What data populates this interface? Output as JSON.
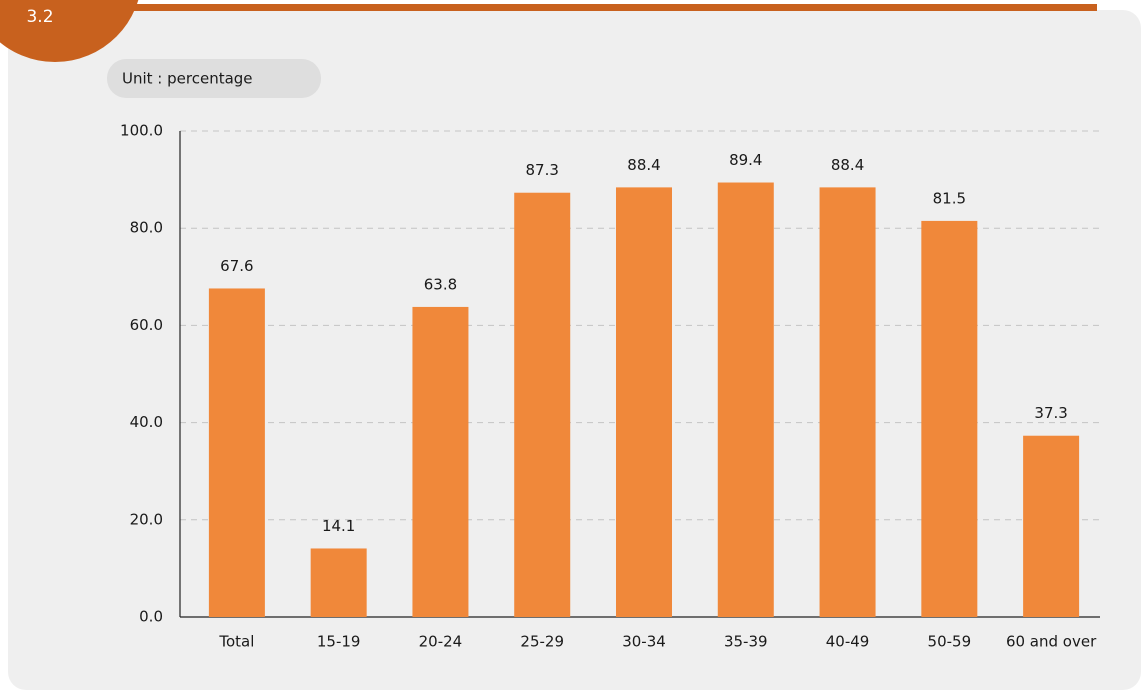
{
  "chart_data": {
    "type": "bar",
    "figure_number": "3.2",
    "unit_label": "Unit : percentage",
    "categories": [
      "Total",
      "15-19",
      "20-24",
      "25-29",
      "30-34",
      "35-39",
      "40-49",
      "50-59",
      "60 and over"
    ],
    "values": [
      67.6,
      14.1,
      63.8,
      87.3,
      88.4,
      89.4,
      88.4,
      81.5,
      37.3
    ],
    "color": "#f0883a",
    "ylim": [
      0,
      100
    ],
    "yticks": [
      {
        "value": 0,
        "label": "0.0"
      },
      {
        "value": 20,
        "label": "20.0"
      },
      {
        "value": 40,
        "label": "40.0"
      },
      {
        "value": 60,
        "label": "60.0"
      },
      {
        "value": 80,
        "label": "80.0"
      },
      {
        "value": 100,
        "label": "100.0"
      }
    ],
    "grid": true
  }
}
